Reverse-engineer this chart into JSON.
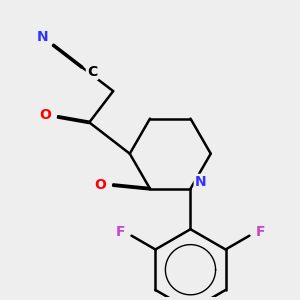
{
  "background_color": "#eeeeee",
  "atom_colors": {
    "N": "#3333ff",
    "O": "#ff0000",
    "F": "#cc44cc",
    "C": "#000000"
  },
  "bond_color": "#000000",
  "bond_width": 1.8,
  "font_size": 10
}
